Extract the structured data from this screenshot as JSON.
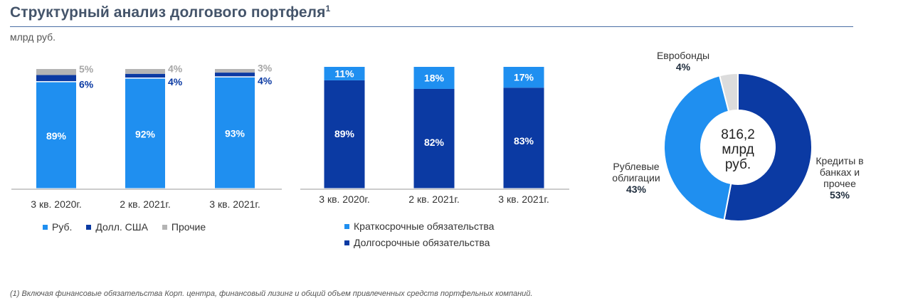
{
  "header": {
    "title": "Структурный анализ долгового портфеля",
    "title_note": "1",
    "unit": "млрд руб."
  },
  "colors": {
    "light_blue": "#1f8ff0",
    "dark_blue": "#0b3aa3",
    "grey": "#b4b4b4",
    "axis": "#9a9a9a"
  },
  "legends": {
    "currency": [
      "Руб.",
      "Долл. США",
      "Прочие"
    ],
    "term": [
      "Краткосрочные обязательства",
      "Долгосрочные обязательства"
    ]
  },
  "footnote": "(1) Включая финансовые обязательства Корп. центра, финансовый лизинг и общий объем привлеченных средств портфельных компаний.",
  "pie_center": [
    "816,2",
    "млрд",
    "руб."
  ],
  "pie_labels": {
    "eurobonds": {
      "name": "Евробонды",
      "value": "4%"
    },
    "ruble_bonds": {
      "name_line1": "Рублевые",
      "name_line2": "облигации",
      "value": "43%"
    },
    "loans": {
      "name_line1": "Кредиты в",
      "name_line2": "банках и",
      "name_line3": "прочее",
      "value": "53%"
    }
  },
  "chart_data": [
    {
      "type": "bar",
      "stacked": true,
      "percent": true,
      "categories": [
        "3 кв. 2020г.",
        "2 кв. 2021г.",
        "3 кв. 2021г."
      ],
      "series": [
        {
          "name": "Руб.",
          "values": [
            89,
            92,
            93
          ],
          "color": "#1f8ff0"
        },
        {
          "name": "Долл. США",
          "values": [
            6,
            4,
            4
          ],
          "color": "#0b3aa3"
        },
        {
          "name": "Прочие",
          "values": [
            5,
            4,
            3
          ],
          "color": "#b4b4b4"
        }
      ],
      "ylim": [
        0,
        100
      ],
      "legend": "bottom"
    },
    {
      "type": "bar",
      "stacked": true,
      "percent": true,
      "categories": [
        "3 кв. 2020г.",
        "2 кв. 2021г.",
        "3 кв. 2021г."
      ],
      "series": [
        {
          "name": "Долгосрочные обязательства",
          "values": [
            89,
            82,
            83
          ],
          "color": "#0b3aa3"
        },
        {
          "name": "Краткосрочные обязательства",
          "values": [
            11,
            18,
            17
          ],
          "color": "#1f8ff0"
        }
      ],
      "ylim": [
        0,
        100
      ],
      "legend": "bottom"
    },
    {
      "type": "pie",
      "donut": true,
      "total_label": "816,2 млрд руб.",
      "slices": [
        {
          "name": "Кредиты в банках и прочее",
          "value": 53,
          "color": "#0b3aa3"
        },
        {
          "name": "Рублевые облигации",
          "value": 43,
          "color": "#1f8ff0"
        },
        {
          "name": "Евробонды",
          "value": 4,
          "color": "#dcdcdc"
        }
      ]
    }
  ]
}
